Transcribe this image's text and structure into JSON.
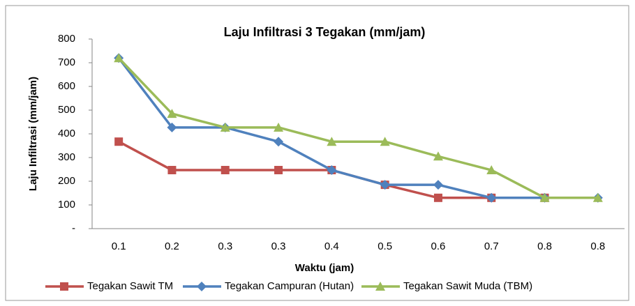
{
  "chart_data": {
    "type": "line",
    "title": "Laju Infiltrasi 3 Tegakan (mm/jam)",
    "x_label": "Waktu (jam)",
    "y_label": "Laju Infiltrasi (mm/jam)",
    "categories": [
      "0.1",
      "0.2",
      "0.3",
      "0.3",
      "0.4",
      "0.5",
      "0.6",
      "0.7",
      "0.8",
      "0.8"
    ],
    "series": [
      {
        "name": "Tegakan Sawit TM",
        "color": "#c0504d",
        "marker": "square",
        "values": [
          367,
          247,
          247,
          247,
          247,
          185,
          130,
          130,
          130,
          null
        ]
      },
      {
        "name": "Tegakan Campuran (Hutan)",
        "color": "#4f81bd",
        "marker": "diamond",
        "values": [
          720,
          427,
          427,
          367,
          247,
          185,
          185,
          130,
          130,
          130
        ]
      },
      {
        "name": "Tegakan Sawit Muda (TBM)",
        "color": "#9bbb59",
        "marker": "triangle",
        "values": [
          720,
          485,
          427,
          427,
          367,
          367,
          305,
          247,
          130,
          130
        ]
      }
    ],
    "ylim": [
      0,
      800
    ],
    "yticks": [
      {
        "value": 0,
        "label": "-"
      },
      100,
      200,
      300,
      400,
      500,
      600,
      700,
      800
    ],
    "legend": "bottom"
  }
}
